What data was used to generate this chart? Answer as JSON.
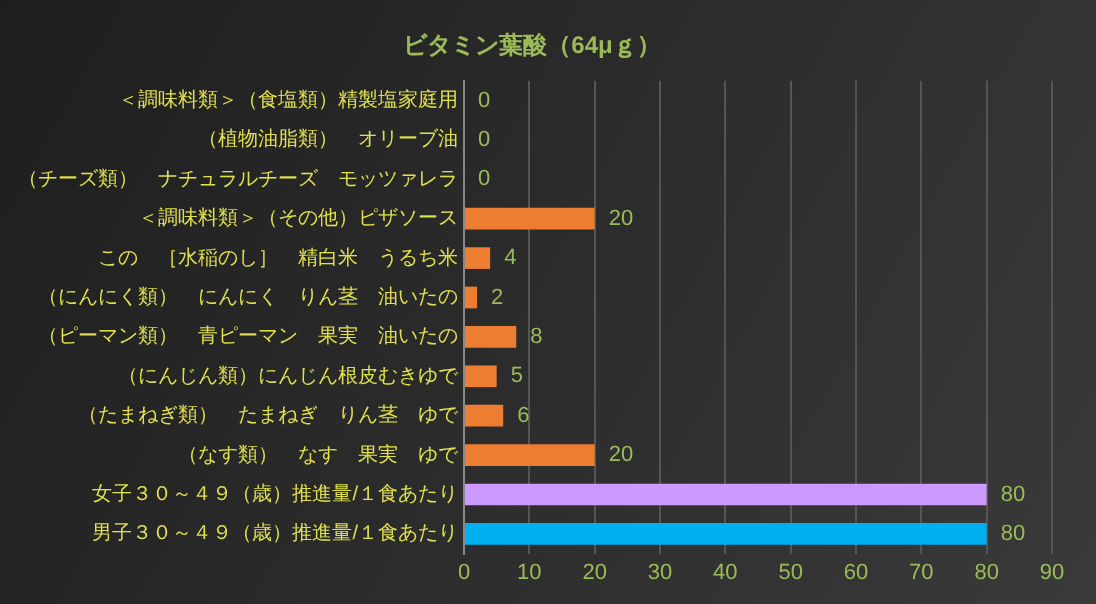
{
  "chart_data": {
    "type": "bar",
    "orientation": "horizontal",
    "title": "ビタミン葉酸（64μｇ）",
    "categories": [
      "＜調味料類＞（食塩類）精製塩家庭用",
      "（植物油脂類）　オリーブ油",
      "（チーズ類）　ナチュラルチーズ　モッツァレラ",
      "＜調味料類＞（その他）ピザソース",
      "この　［水稲のし］　精白米　うるち米",
      "（にんにく類）　にんにく　りん茎　油いたの",
      "（ピーマン類）　青ピーマン　果実　油いたの",
      "（にんじん類）にんじん根皮むきゆで",
      "（たまねぎ類）　たまねぎ　りん茎　ゆで",
      "（なす類）　なす　果実　ゆで",
      "女子３０～４９（歳）推進量/１食あたり",
      "男子３０～４９（歳）推進量/１食あたり"
    ],
    "values": [
      0,
      0,
      0,
      20,
      4,
      2,
      8,
      5,
      6,
      20,
      80,
      80
    ],
    "colors": [
      "#ed7d31",
      "#ed7d31",
      "#ed7d31",
      "#ed7d31",
      "#ed7d31",
      "#ed7d31",
      "#ed7d31",
      "#ed7d31",
      "#ed7d31",
      "#ed7d31",
      "#cc99ff",
      "#00b0f0"
    ],
    "xlim": [
      0,
      90
    ],
    "xticks": [
      0,
      10,
      20,
      30,
      40,
      50,
      60,
      70,
      80,
      90
    ],
    "grid": "x",
    "data_labels": true
  }
}
